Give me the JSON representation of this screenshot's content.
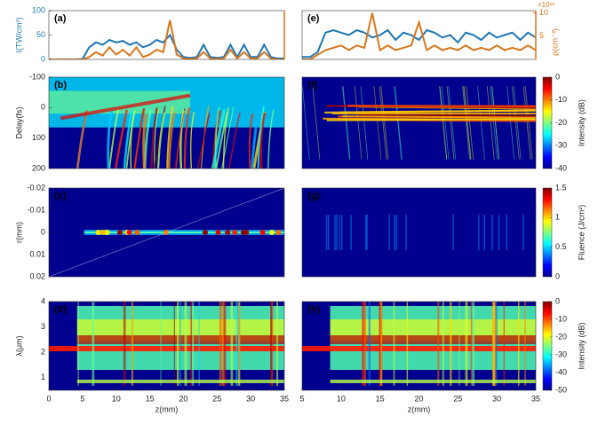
{
  "chart_data": [
    {
      "type": "line",
      "label": "(a)",
      "xlim": [
        0,
        35
      ],
      "ylim": [
        0,
        100
      ],
      "yticks": [
        0,
        50,
        100
      ],
      "ylabel": "I(TW/cm²)",
      "ylabel_color": "#1f77b4",
      "y2lim": [
        0,
        100
      ],
      "y2_color": "#d9761a",
      "x": [
        0,
        1,
        2,
        3,
        4,
        5,
        6,
        7,
        8,
        9,
        10,
        11,
        12,
        13,
        14,
        15,
        16,
        17,
        18,
        19,
        20,
        21,
        22,
        23,
        24,
        25,
        26,
        27,
        28,
        29,
        30,
        31,
        32,
        33,
        34,
        35
      ],
      "series": [
        {
          "color": "#1f77b4",
          "values": [
            0,
            0,
            0,
            0,
            0,
            1,
            25,
            35,
            30,
            40,
            35,
            38,
            30,
            35,
            25,
            30,
            40,
            35,
            50,
            20,
            5,
            3,
            5,
            30,
            5,
            3,
            5,
            30,
            5,
            30,
            5,
            5,
            30,
            5,
            2,
            2
          ]
        },
        {
          "color": "#d9761a",
          "axis": "y2",
          "values": [
            0,
            0,
            0,
            0,
            0,
            0,
            5,
            15,
            8,
            25,
            10,
            20,
            8,
            25,
            5,
            10,
            20,
            15,
            80,
            10,
            2,
            1,
            2,
            15,
            2,
            1,
            2,
            20,
            2,
            15,
            2,
            2,
            15,
            2,
            0,
            0
          ]
        }
      ]
    },
    {
      "type": "heatmap",
      "label": "(b)",
      "xlim": [
        0,
        35
      ],
      "ylim": [
        -100,
        200
      ],
      "y_reversed": true,
      "yticks": [
        -100,
        0,
        100,
        200
      ],
      "ylabel": "Delay(fs)"
    },
    {
      "type": "heatmap",
      "label": "(c)",
      "xlim": [
        0,
        35
      ],
      "ylim": [
        -0.02,
        0.02
      ],
      "y_reversed": true,
      "yticks": [
        -0.02,
        -0.01,
        0,
        0.01,
        0.02
      ],
      "ylabel": "r(mm)"
    },
    {
      "type": "heatmap",
      "label": "(d)",
      "xlim": [
        0,
        35
      ],
      "ylim": [
        0.5,
        4
      ],
      "yticks": [
        1,
        2,
        3,
        4
      ],
      "ylabel": "λ(μm)",
      "xticks": [
        0,
        5,
        10,
        15,
        20,
        25,
        30,
        35
      ],
      "xlabel": "z(mm)"
    },
    {
      "type": "line",
      "label": "(e)",
      "xlim": [
        5,
        35
      ],
      "ylim": [
        0,
        100
      ],
      "y2lim": [
        0,
        10.5
      ],
      "y2ticks": [
        5,
        10
      ],
      "y2label": "ρ(cm⁻³)",
      "y2_multiplier": "×10¹⁸",
      "y2_color": "#d9761a",
      "x": [
        5,
        6,
        7,
        8,
        9,
        10,
        11,
        12,
        13,
        14,
        15,
        16,
        17,
        18,
        19,
        20,
        21,
        22,
        23,
        24,
        25,
        26,
        27,
        28,
        29,
        30,
        31,
        32,
        33,
        34,
        35
      ],
      "series": [
        {
          "color": "#1f77b4",
          "values": [
            5,
            5,
            15,
            55,
            60,
            55,
            50,
            60,
            55,
            45,
            50,
            60,
            40,
            55,
            50,
            40,
            60,
            55,
            45,
            50,
            35,
            55,
            50,
            40,
            55,
            45,
            50,
            55,
            40,
            55,
            45
          ]
        },
        {
          "color": "#d9761a",
          "axis": "y2",
          "values": [
            0,
            0,
            1,
            2,
            2.5,
            3,
            2,
            3,
            2.5,
            10,
            2,
            3,
            2,
            2.5,
            3,
            8,
            2,
            3,
            2,
            2.5,
            2,
            3,
            2,
            2.5,
            2,
            3,
            2,
            2.5,
            2,
            3,
            2
          ]
        }
      ]
    },
    {
      "type": "heatmap",
      "label": "(f)",
      "xlim": [
        5,
        35
      ],
      "ylim": [
        -100,
        200
      ],
      "y_reversed": true,
      "colorbar": {
        "label": "Intensity (dB)",
        "lim": [
          -40,
          0
        ],
        "ticks": [
          0,
          -10,
          -20,
          -30,
          -40
        ]
      }
    },
    {
      "type": "heatmap",
      "label": "(g)",
      "xlim": [
        5,
        35
      ],
      "ylim": [
        -0.02,
        0.02
      ],
      "y_reversed": true,
      "colorbar": {
        "label": "Fluence (J/cm²)",
        "lim": [
          0,
          1.5
        ],
        "ticks": [
          0,
          0.5,
          1,
          1.5
        ]
      }
    },
    {
      "type": "heatmap",
      "label": "(h)",
      "xlim": [
        5,
        35
      ],
      "ylim": [
        0.5,
        4
      ],
      "xticks": [
        5,
        10,
        15,
        20,
        25,
        30,
        35
      ],
      "xlabel": "z(mm)",
      "colorbar": {
        "label": "Intensity (dB)",
        "lim": [
          -50,
          0
        ],
        "ticks": [
          0,
          -10,
          -20,
          -30,
          -40,
          -50
        ]
      }
    }
  ]
}
